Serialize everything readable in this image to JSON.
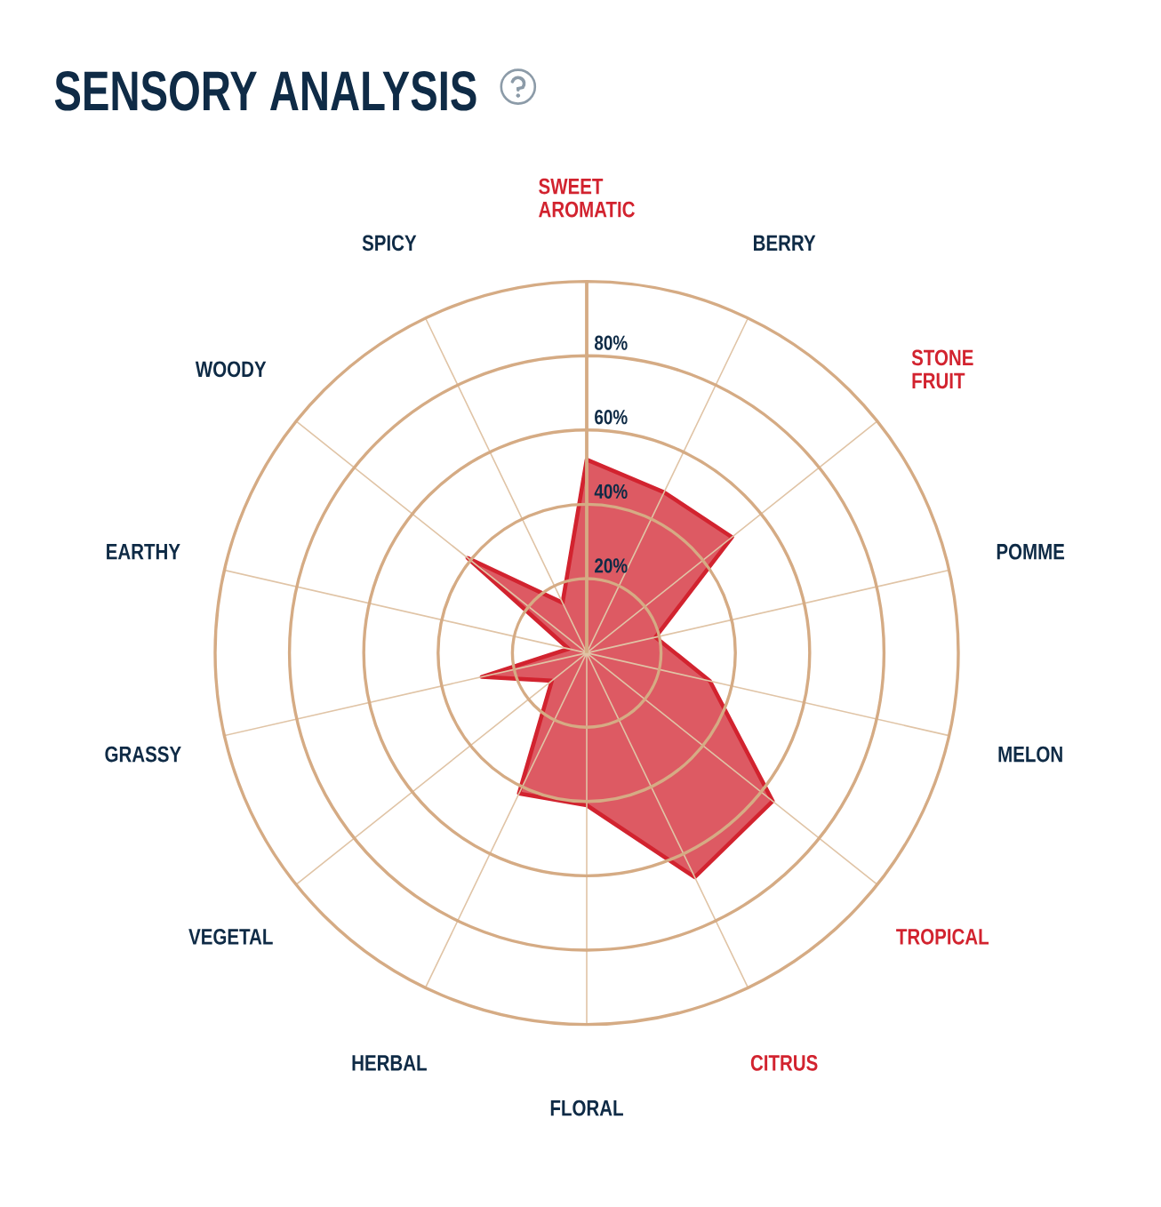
{
  "chart_data": {
    "type": "radar",
    "title": "SENSORY ANALYSIS",
    "categories": [
      "SWEET AROMATIC",
      "BERRY",
      "STONE FRUIT",
      "POMME",
      "MELON",
      "TROPICAL",
      "CITRUS",
      "FLORAL",
      "HERBAL",
      "VEGETAL",
      "GRASSY",
      "EARTHY",
      "WOODY",
      "SPICY"
    ],
    "series": [
      {
        "color": "#d2232f",
        "values": [
          52,
          48,
          50,
          19,
          34,
          64,
          67,
          41,
          42,
          12,
          29,
          5,
          41,
          15
        ]
      }
    ],
    "ylim": [
      0,
      100
    ],
    "yticks": [
      {
        "value": 20,
        "label": "20%"
      },
      {
        "value": 40,
        "label": "40%"
      },
      {
        "value": 60,
        "label": "60%"
      },
      {
        "value": 80,
        "label": "80%"
      }
    ],
    "grid": true
  }
}
